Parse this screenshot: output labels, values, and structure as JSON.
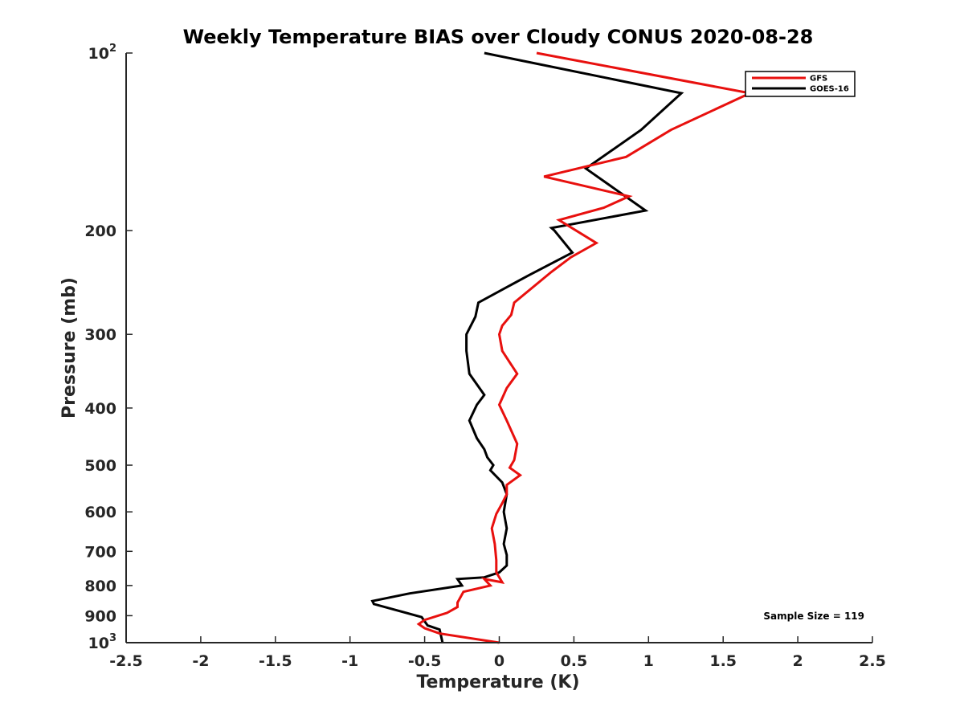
{
  "chart_data": {
    "type": "line",
    "title": "Weekly Temperature BIAS over Cloudy CONUS 2020-08-28",
    "xlabel": "Temperature (K)",
    "ylabel": "Pressure (mb)",
    "xlim": [
      -2.5,
      2.5
    ],
    "ylim": [
      100,
      1000
    ],
    "y_scale": "log",
    "y_reversed": true,
    "x_ticks": [
      "-2.5",
      "-2",
      "-1.5",
      "-1",
      "-0.5",
      "0",
      "0.5",
      "1",
      "1.5",
      "2",
      "2.5"
    ],
    "x_tick_values": [
      -2.5,
      -2,
      -1.5,
      -1,
      -0.5,
      0,
      0.5,
      1,
      1.5,
      2,
      2.5
    ],
    "y_ticks": [
      {
        "value": 100,
        "base": "10",
        "exp": "2"
      },
      {
        "value": 200,
        "label": "200"
      },
      {
        "value": 300,
        "label": "300"
      },
      {
        "value": 400,
        "label": "400"
      },
      {
        "value": 500,
        "label": "500"
      },
      {
        "value": 600,
        "label": "600"
      },
      {
        "value": 700,
        "label": "700"
      },
      {
        "value": 800,
        "label": "800"
      },
      {
        "value": 900,
        "label": "900"
      },
      {
        "value": 1000,
        "base": "10",
        "exp": "3"
      }
    ],
    "grid": false,
    "legend_position": "top-right",
    "annotation": "Sample Size = 119",
    "series": [
      {
        "name": "GFS",
        "color": "#e8100e",
        "x": [
          0.25,
          1.68,
          1.15,
          0.85,
          0.3,
          0.87,
          0.7,
          0.4,
          0.65,
          0.48,
          0.35,
          0.1,
          0.08,
          0.02,
          0.0,
          0.02,
          0.12,
          0.05,
          0.0,
          0.05,
          0.12,
          0.1,
          0.07,
          0.14,
          0.05,
          0.05,
          0.02,
          -0.02,
          -0.05,
          -0.03,
          -0.02,
          -0.02,
          0.02,
          -0.1,
          -0.06,
          -0.24,
          -0.28,
          -0.28,
          -0.35,
          -0.5,
          -0.54,
          -0.5,
          -0.4,
          0.0
        ],
        "y": [
          100,
          117,
          135,
          150,
          162,
          175,
          183,
          192,
          210,
          222,
          235,
          265,
          278,
          290,
          300,
          320,
          350,
          370,
          395,
          420,
          460,
          490,
          505,
          520,
          540,
          560,
          580,
          605,
          640,
          680,
          725,
          760,
          790,
          780,
          800,
          820,
          855,
          870,
          890,
          915,
          930,
          945,
          965,
          1000
        ]
      },
      {
        "name": "GOES-16",
        "color": "#000000",
        "x": [
          -0.1,
          1.22,
          0.95,
          0.58,
          0.98,
          0.35,
          0.37,
          0.49,
          0.2,
          -0.14,
          -0.16,
          -0.22,
          -0.22,
          -0.2,
          -0.1,
          -0.15,
          -0.2,
          -0.15,
          -0.1,
          -0.08,
          -0.04,
          -0.06,
          0.02,
          0.05,
          0.03,
          0.05,
          0.03,
          0.05,
          0.05,
          0.0,
          -0.1,
          -0.28,
          -0.25,
          -0.6,
          -0.85,
          -0.84,
          -0.52,
          -0.48,
          -0.4,
          -0.38
        ],
        "y": [
          100,
          117,
          135,
          157,
          185,
          198,
          200,
          218,
          238,
          265,
          280,
          300,
          320,
          350,
          380,
          395,
          420,
          450,
          470,
          485,
          500,
          510,
          535,
          560,
          600,
          640,
          680,
          710,
          740,
          760,
          775,
          780,
          800,
          825,
          850,
          860,
          905,
          935,
          950,
          1000
        ]
      }
    ]
  }
}
